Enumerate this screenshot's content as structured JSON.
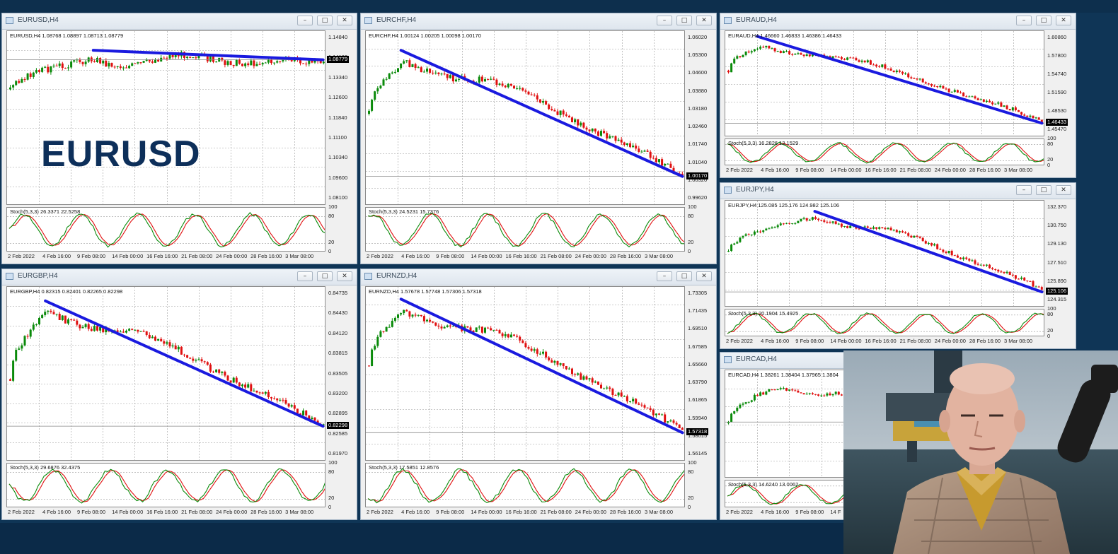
{
  "windows": [
    {
      "id": "eurusd",
      "title": "EURUSD,H4",
      "info": "EURUSD,H4  1.08768 1.08897 1.08713 1.08779",
      "stoch": "Stoch(5,3,3) 26.3371 22.5258",
      "current": "1.08779",
      "prices": [
        "1.14840",
        "1.14100",
        "1.13340",
        "1.12600",
        "1.11840",
        "1.11100",
        "1.10340",
        "1.09600",
        "1.08100"
      ],
      "dates": [
        "2 Feb 2022",
        "4 Feb 16:00",
        "9 Feb 08:00",
        "14 Feb 00:00",
        "16 Feb 16:00",
        "21 Feb 08:00",
        "24 Feb 00:00",
        "28 Feb 16:00",
        "3 Mar 08:00"
      ],
      "overlay": "EURUSD"
    },
    {
      "id": "eurchf",
      "title": "EURCHF,H4",
      "info": "EURCHF,H4  1.00124 1.00205 1.00098 1.00170",
      "stoch": "Stoch(5,3,3) 24.5231 15.7376",
      "current": "1.00170",
      "prices": [
        "1.06020",
        "1.05300",
        "1.04600",
        "1.03880",
        "1.03180",
        "1.02460",
        "1.01740",
        "1.01040",
        "1.00320",
        "0.99620"
      ],
      "dates": [
        "2 Feb 2022",
        "4 Feb 16:00",
        "9 Feb 08:00",
        "14 Feb 00:00",
        "16 Feb 16:00",
        "21 Feb 08:00",
        "24 Feb 00:00",
        "28 Feb 16:00",
        "3 Mar 08:00"
      ]
    },
    {
      "id": "euraud",
      "title": "EURAUD,H4",
      "info": "EURAUD,H4  1.46660 1.46833 1.46386 1.46433",
      "stoch": "Stoch(5,3,3) 16.2826 13.1529",
      "current": "1.46433",
      "prices": [
        "1.60860",
        "1.57800",
        "1.54740",
        "1.51590",
        "1.48530",
        "1.45470"
      ],
      "dates": [
        "2 Feb 2022",
        "4 Feb 16:00",
        "9 Feb 08:00",
        "14 Feb 00:00",
        "16 Feb 16:00",
        "21 Feb 08:00",
        "24 Feb 00:00",
        "28 Feb 16:00",
        "3 Mar 08:00"
      ]
    },
    {
      "id": "eurgbp",
      "title": "EURGBP,H4",
      "info": "EURGBP,H4  0.82315 0.82401 0.82265 0.82298",
      "stoch": "Stoch(5,3,3) 29.6876 32.4375",
      "current": "0.82298",
      "prices": [
        "0.84735",
        "0.84430",
        "0.84120",
        "0.83815",
        "0.83505",
        "0.83200",
        "0.82895",
        "0.82585",
        "0.81970"
      ],
      "dates": [
        "2 Feb 2022",
        "4 Feb 16:00",
        "9 Feb 08:00",
        "14 Feb 00:00",
        "16 Feb 16:00",
        "21 Feb 08:00",
        "24 Feb 00:00",
        "28 Feb 16:00",
        "3 Mar 08:00"
      ]
    },
    {
      "id": "eurnzd",
      "title": "EURNZD,H4",
      "info": "EURNZD,H4  1.57678 1.57748 1.57306 1.57318",
      "stoch": "Stoch(5,3,3) 17.5851 12.8576",
      "current": "1.57318",
      "prices": [
        "1.73305",
        "1.71435",
        "1.69510",
        "1.67585",
        "1.65660",
        "1.63790",
        "1.61865",
        "1.59940",
        "1.58015",
        "1.56145"
      ],
      "dates": [
        "2 Feb 2022",
        "4 Feb 16:00",
        "9 Feb 08:00",
        "14 Feb 00:00",
        "16 Feb 16:00",
        "21 Feb 08:00",
        "24 Feb 00:00",
        "28 Feb 16:00",
        "3 Mar 08:00"
      ]
    },
    {
      "id": "eurjpy",
      "title": "EURJPY,H4",
      "info": "EURJPY,H4  125.085 125.176 124.982 125.106",
      "stoch": "Stoch(5,3,3) 20.1904 15.4925",
      "current": "125.106",
      "prices": [
        "132.370",
        "130.750",
        "129.130",
        "127.510",
        "125.890",
        "124.315"
      ],
      "dates": [
        "2 Feb 2022",
        "4 Feb 16:00",
        "9 Feb 08:00",
        "14 Feb 00:00",
        "16 Feb 16:00",
        "21 Feb 08:00",
        "24 Feb 00:00",
        "28 Feb 16:00",
        "3 Mar 08:00"
      ]
    },
    {
      "id": "eurcad",
      "title": "EURCAD,H4",
      "info": "EURCAD,H4  1.38261 1.38404 1.37965 1.3804",
      "stoch": "Stoch(5,3,3) 14.6240 13.0062",
      "current": "",
      "prices": [],
      "dates": [
        "2 Feb 2022",
        "4 Feb 16:00",
        "9 Feb 08:00",
        "14 F"
      ]
    }
  ],
  "stoch_levels": {
    "top": "100",
    "hi": "80",
    "lo": "20",
    "bottom": "0"
  },
  "colors": {
    "bull": "#0a8a0a",
    "bear": "#e01010",
    "trend": "#1a1adf",
    "grid": "#9a9a9a",
    "stochMain": "#0a8a0a",
    "stochSignal": "#e01010"
  }
}
